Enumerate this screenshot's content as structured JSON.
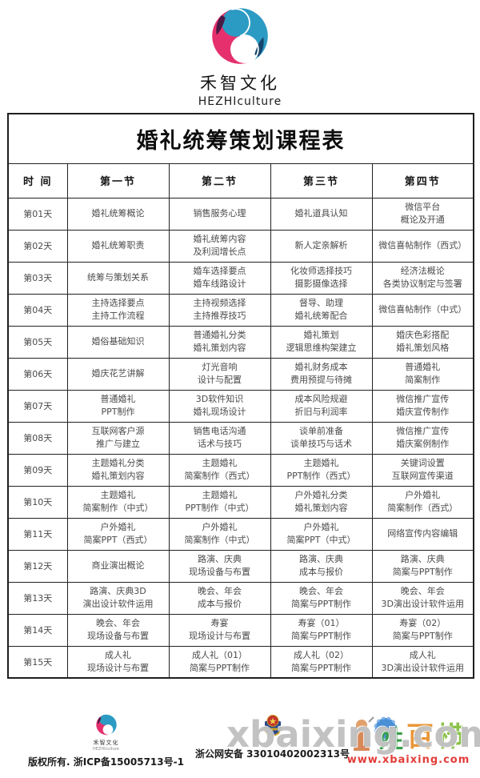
{
  "brand": {
    "name_cn": "禾智文化",
    "name_en": "HEZHIculture",
    "logo_pink": "#E6306E",
    "logo_purple": "#4A1A45",
    "logo_blue": "#2C9BC4",
    "logo_navy": "#16456B"
  },
  "table": {
    "title": "婚礼统筹策划课程表",
    "columns": [
      "时 间",
      "第一节",
      "第二节",
      "第三节",
      "第四节"
    ],
    "rows": [
      {
        "day": "第01天",
        "cells": [
          "婚礼统筹概论",
          "销售服务心理",
          "婚礼道具认知",
          "微信平台\n概论及开通"
        ]
      },
      {
        "day": "第02天",
        "cells": [
          "婚礼统筹职责",
          "婚礼统筹内容\n及利润增长点",
          "新人定亲解析",
          "微信喜帖制作（西式）"
        ]
      },
      {
        "day": "第03天",
        "cells": [
          "统筹与策划关系",
          "婚车选择要点\n婚车线路设计",
          "化妆师选择技巧\n摄影摄像选择",
          "经济法概论\n各类协议制定与签署"
        ]
      },
      {
        "day": "第04天",
        "cells": [
          "主持选择要点\n主持工作流程",
          "主持视频选择\n主持推荐技巧",
          "督导、助理\n婚礼统筹配合",
          "微信喜帖制作（中式）"
        ]
      },
      {
        "day": "第05天",
        "cells": [
          "婚俗基础知识",
          "普通婚礼分类\n婚礼策划内容",
          "婚礼策划\n逻辑思维构架建立",
          "婚庆色彩搭配\n婚礼策划风格"
        ]
      },
      {
        "day": "第06天",
        "cells": [
          "婚庆花艺讲解",
          "灯光音响\n设计与配置",
          "婚礼财务成本\n费用预提与待摊",
          "普通婚礼\n简案制作"
        ]
      },
      {
        "day": "第07天",
        "cells": [
          "普通婚礼\nPPT制作",
          "3D软件知识\n婚礼现场设计",
          "成本风险规避\n折旧与利润率",
          "微信推广宣传\n婚庆宣传制作"
        ]
      },
      {
        "day": "第08天",
        "cells": [
          "互联网客户源\n推广与建立",
          "销售电话沟通\n话术与技巧",
          "谈单前准备\n谈单技巧与话术",
          "微信推广宣传\n婚庆案例制作"
        ]
      },
      {
        "day": "第09天",
        "cells": [
          "主题婚礼分类\n婚礼策划内容",
          "主题婚礼\n简案制作（西式）",
          "主题婚礼\nPPT制作（西式）",
          "关键词设置\n互联网宣传渠道"
        ]
      },
      {
        "day": "第10天",
        "cells": [
          "主题婚礼\n简案制作（中式）",
          "主题婚礼\nPPT制作（中式）",
          "户外婚礼分类\n婚礼策划内容",
          "户外婚礼\n简案制作（西式）"
        ]
      },
      {
        "day": "第11天",
        "cells": [
          "户外婚礼\n简案PPT（西式）",
          "户外婚礼\n简案制作（中式）",
          "户外婚礼\n简案PPT（中式）",
          "网络宣传内容编辑"
        ]
      },
      {
        "day": "第12天",
        "cells": [
          "商业演出概论",
          "路演、庆典\n现场设备与布置",
          "路演、庆典\n成本与报价",
          "路演、庆典\n简案与PPT制作"
        ]
      },
      {
        "day": "第13天",
        "cells": [
          "路演、庆典3D\n演出设计软件运用",
          "晚会、年会\n成本与报价",
          "晚会、年会\n简案与PPT制作",
          "晚会、年会\n3D演出设计软件运用"
        ]
      },
      {
        "day": "第14天",
        "cells": [
          "晚会、年会\n现场设备与布置",
          "寿宴\n现场设计与布置",
          "寿宴（01）\n简案与PPT制作",
          "寿宴（02）\n简案与PPT制作"
        ]
      },
      {
        "day": "第15天",
        "cells": [
          "成人礼\n现场设计与布置",
          "成人礼（01）\n简案与PPT制作",
          "成人礼（02）\n简案与PPT制作",
          "成人礼\n3D演出设计软件运用"
        ]
      }
    ]
  },
  "footer": {
    "mini_logo_cn": "禾智文化",
    "mini_logo_en": "HEZHIculture",
    "copyright": "版权所有. 浙ICP备15005713号-1",
    "security": "浙公网安备 33010402002313号",
    "badge_icon": "police-badge-icon"
  },
  "watermark": {
    "big_text": "xbaixing.com",
    "url_text": "www.xbaixing.com",
    "url_color": "#e23c39"
  }
}
